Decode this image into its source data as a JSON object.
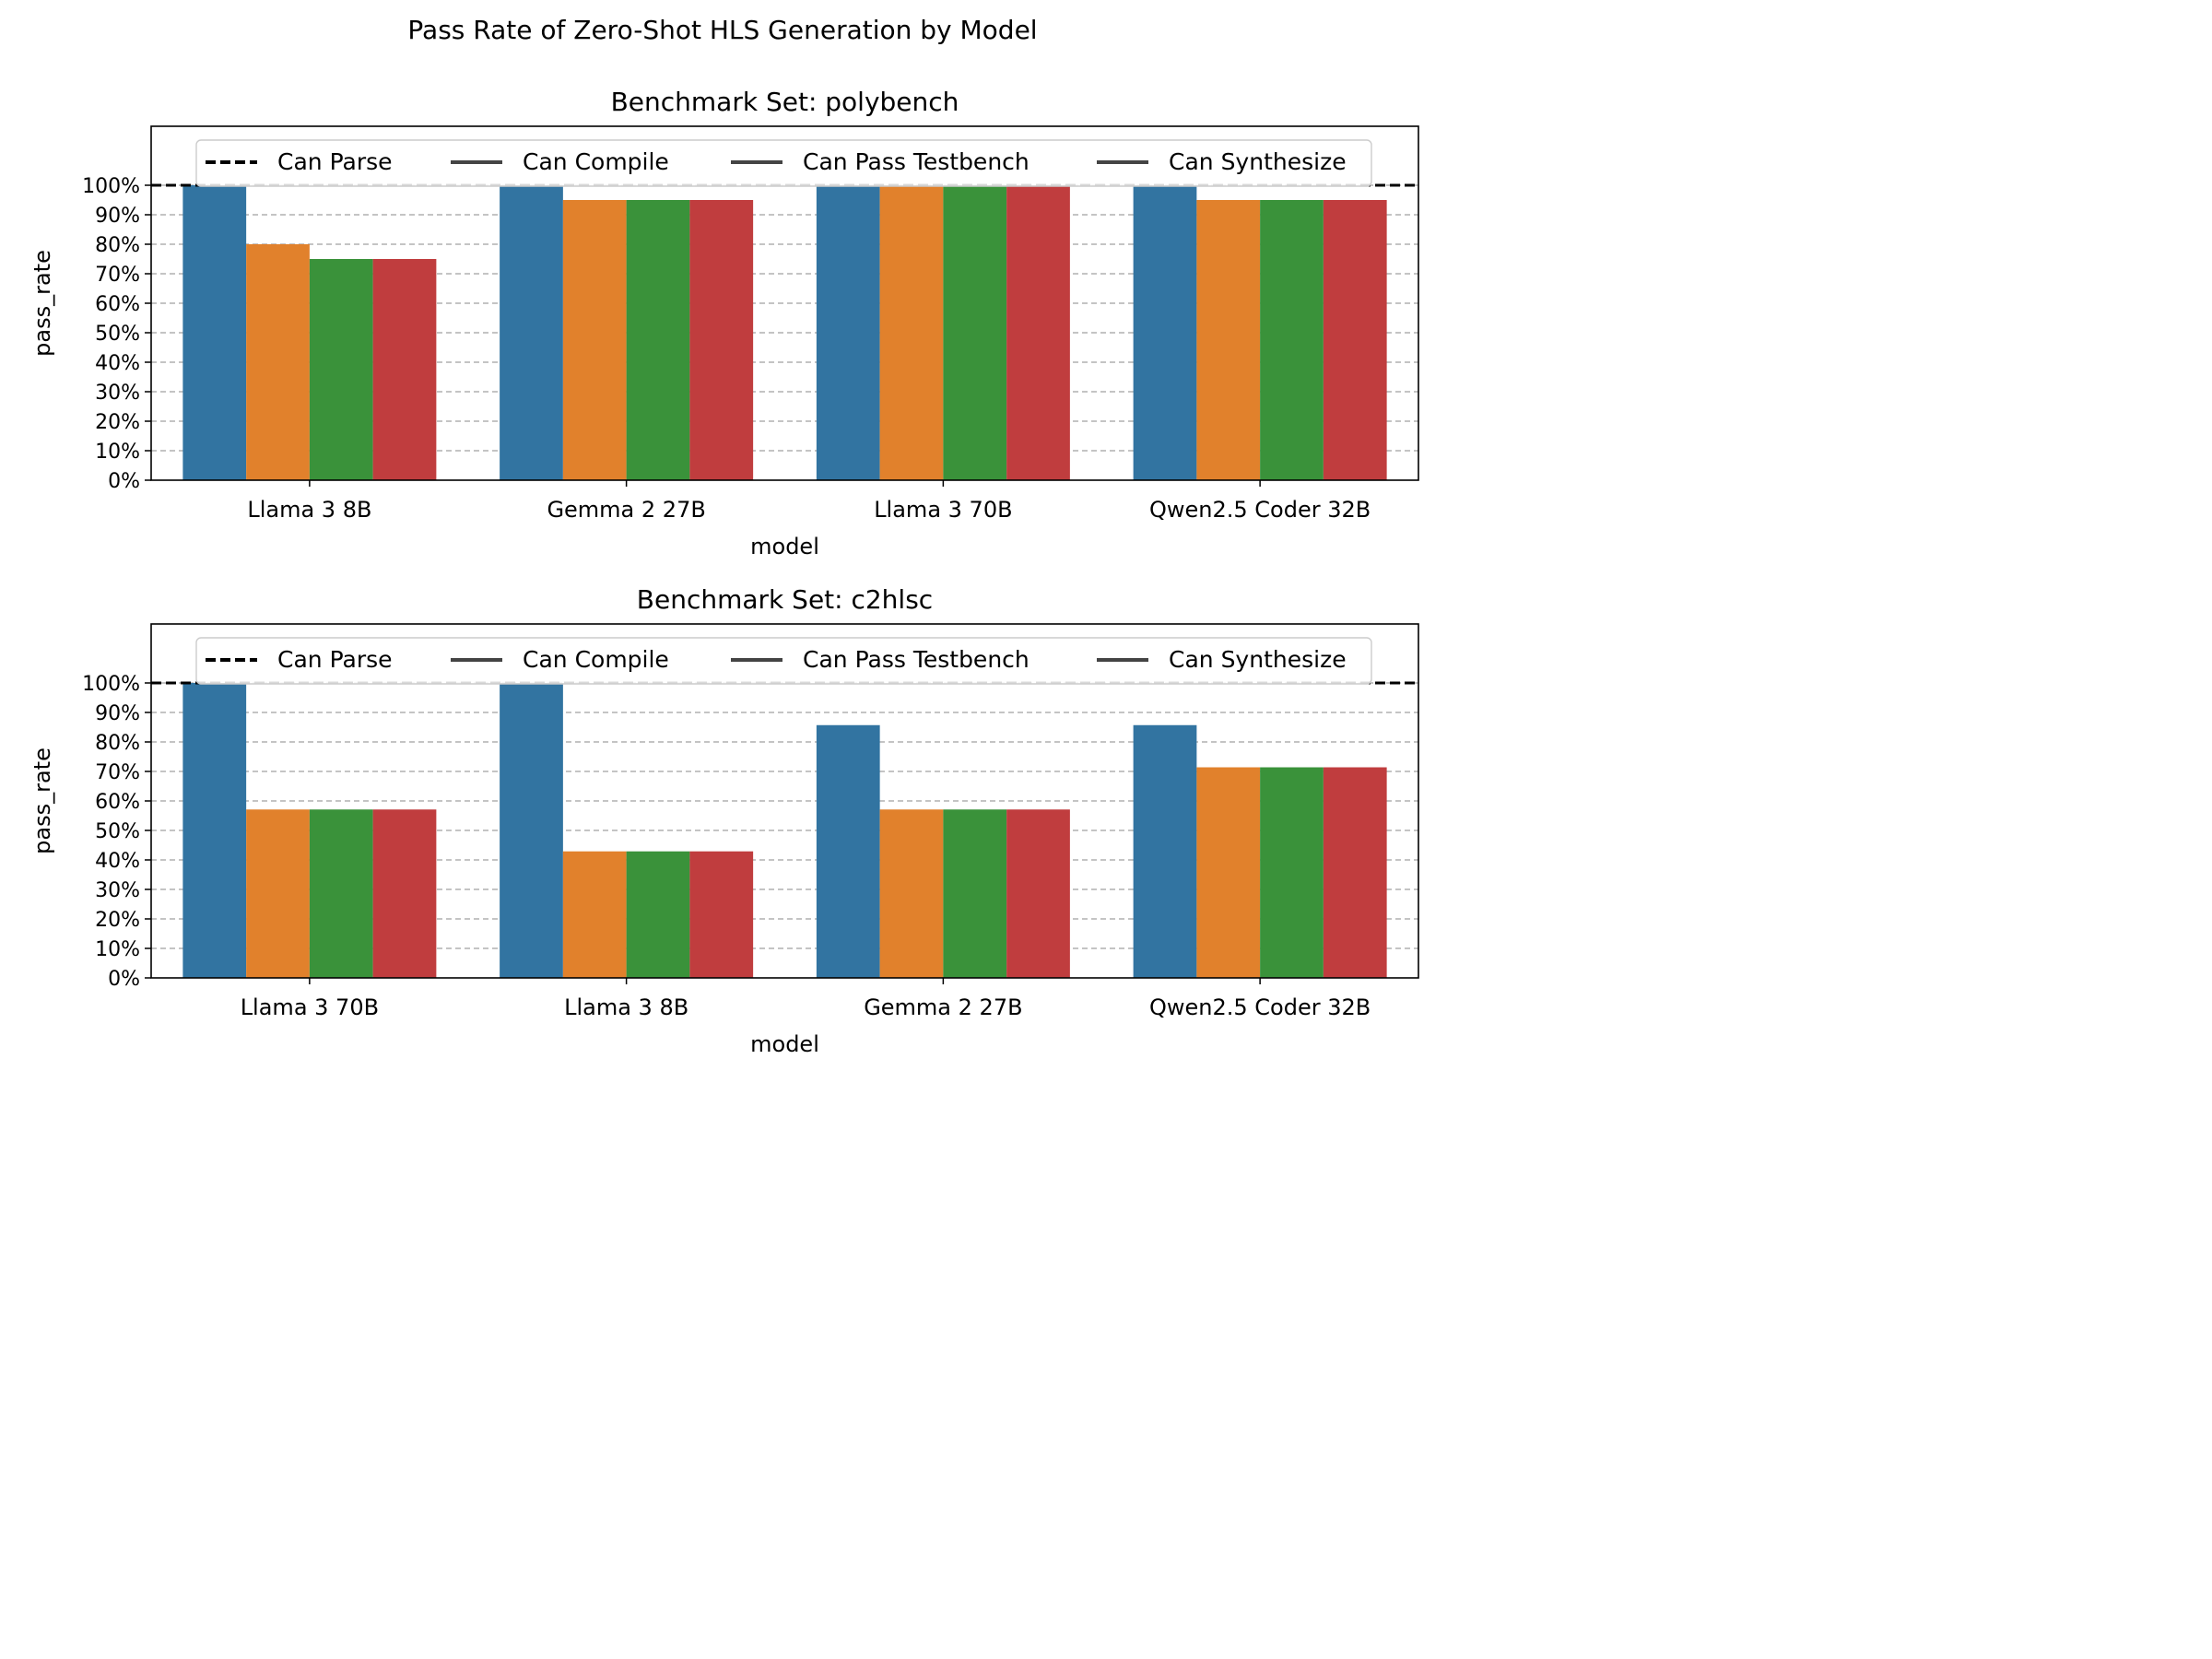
{
  "figure": {
    "title": "Pass Rate of Zero-Shot HLS Generation by Model"
  },
  "colors": {
    "series": [
      "#3274a1",
      "#e1812c",
      "#3a923a",
      "#c03d3e"
    ],
    "reference_line": "#000000",
    "grid": "#b0b0b0"
  },
  "legend": {
    "placement": "top-center",
    "entries": [
      {
        "label": "Can Parse",
        "style": "dashed"
      },
      {
        "label": "Can Compile",
        "style": "solid"
      },
      {
        "label": "Can Pass Testbench",
        "style": "solid"
      },
      {
        "label": "Can Synthesize",
        "style": "solid"
      }
    ]
  },
  "chart_data": [
    {
      "type": "bar",
      "title": "Benchmark Set: polybench",
      "xlabel": "model",
      "ylabel": "pass_rate",
      "ylim": [
        0,
        1.2
      ],
      "yticks": [
        0,
        0.1,
        0.2,
        0.3,
        0.4,
        0.5,
        0.6,
        0.7,
        0.8,
        0.9,
        1.0
      ],
      "ytick_labels": [
        "0%",
        "10%",
        "20%",
        "30%",
        "40%",
        "50%",
        "60%",
        "70%",
        "80%",
        "90%",
        "100%"
      ],
      "grid": "horizontal dashed",
      "reference_line": 1.0,
      "categories": [
        "Llama 3 8B",
        "Gemma 2 27B",
        "Llama 3 70B",
        "Qwen2.5 Coder 32B"
      ],
      "series": [
        {
          "name": "Can Parse",
          "values": [
            1.0,
            1.0,
            1.0,
            1.0
          ]
        },
        {
          "name": "Can Compile",
          "values": [
            0.8,
            0.95,
            1.0,
            0.95
          ]
        },
        {
          "name": "Can Pass Testbench",
          "values": [
            0.75,
            0.95,
            1.0,
            0.95
          ]
        },
        {
          "name": "Can Synthesize",
          "values": [
            0.75,
            0.95,
            1.0,
            0.95
          ]
        }
      ]
    },
    {
      "type": "bar",
      "title": "Benchmark Set: c2hlsc",
      "xlabel": "model",
      "ylabel": "pass_rate",
      "ylim": [
        0,
        1.2
      ],
      "yticks": [
        0,
        0.1,
        0.2,
        0.3,
        0.4,
        0.5,
        0.6,
        0.7,
        0.8,
        0.9,
        1.0
      ],
      "ytick_labels": [
        "0%",
        "10%",
        "20%",
        "30%",
        "40%",
        "50%",
        "60%",
        "70%",
        "80%",
        "90%",
        "100%"
      ],
      "grid": "horizontal dashed",
      "reference_line": 1.0,
      "categories": [
        "Llama 3 70B",
        "Llama 3 8B",
        "Gemma 2 27B",
        "Qwen2.5 Coder 32B"
      ],
      "series": [
        {
          "name": "Can Parse",
          "values": [
            1.0,
            1.0,
            0.857,
            0.857
          ]
        },
        {
          "name": "Can Compile",
          "values": [
            0.571,
            0.429,
            0.571,
            0.714
          ]
        },
        {
          "name": "Can Pass Testbench",
          "values": [
            0.571,
            0.429,
            0.571,
            0.714
          ]
        },
        {
          "name": "Can Synthesize",
          "values": [
            0.571,
            0.429,
            0.571,
            0.714
          ]
        }
      ]
    }
  ]
}
